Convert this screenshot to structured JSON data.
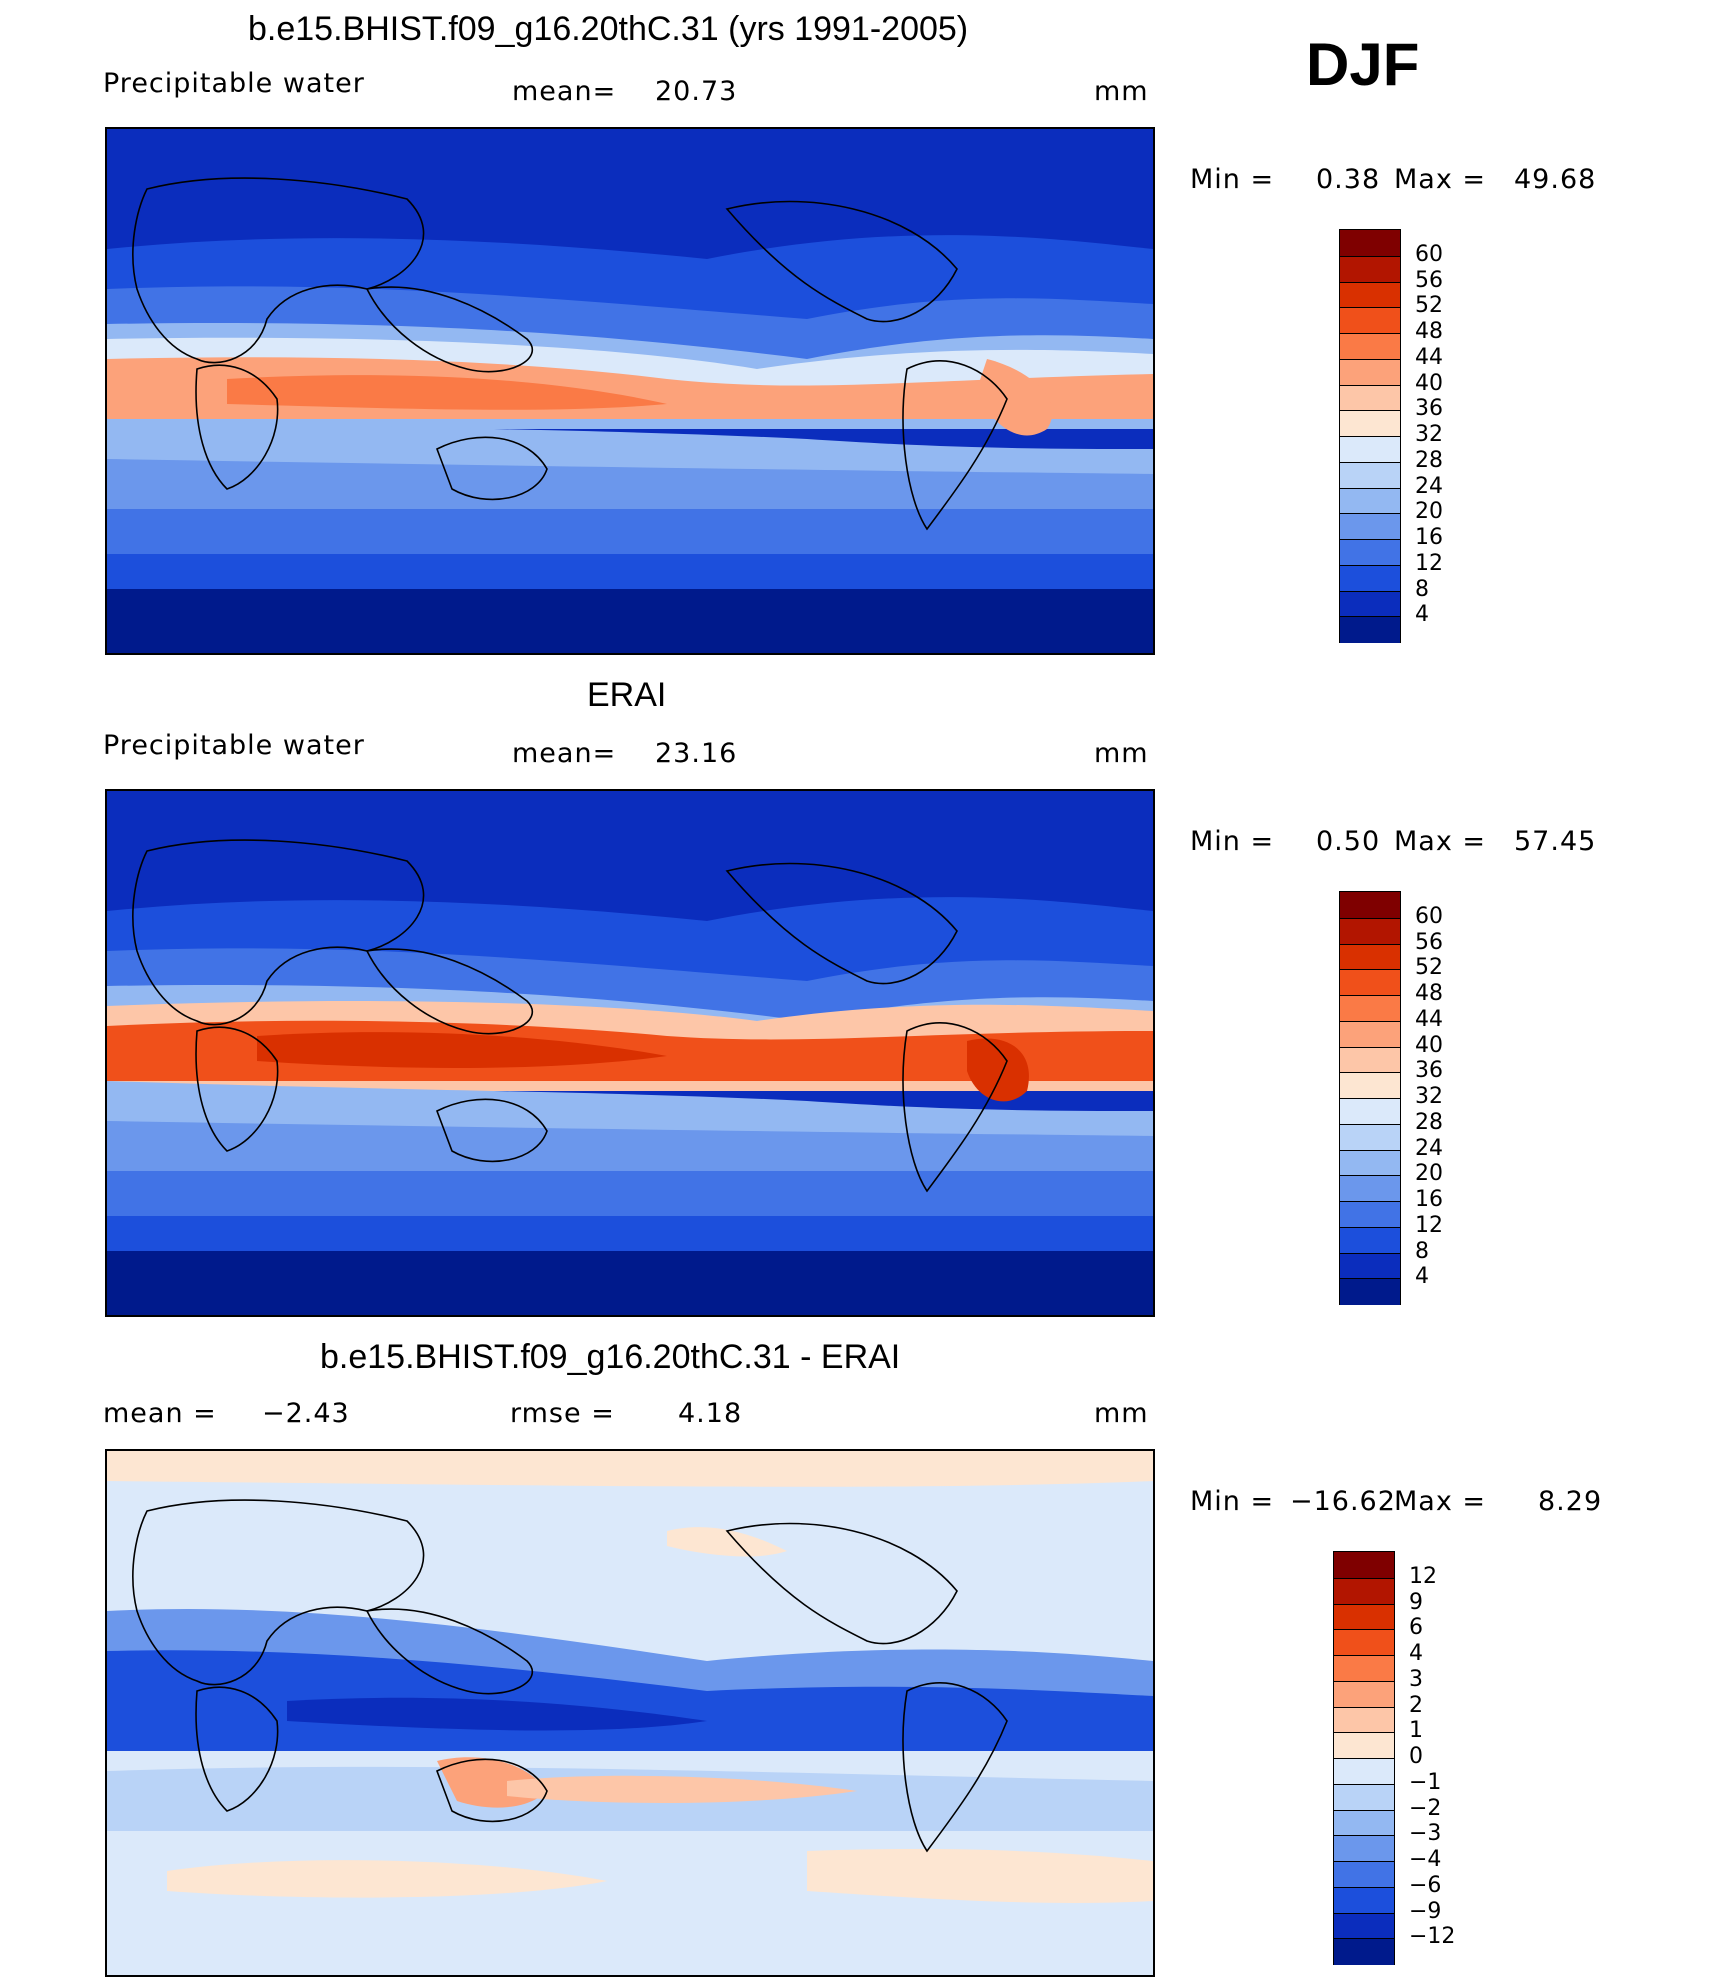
{
  "season": "DJF",
  "panels": [
    {
      "title": "b.e15.BHIST.f09_g16.20thC.31 (yrs 1991-2005)",
      "variable": "Precipitable  water",
      "mean_label": "mean=",
      "mean_value": "20.73",
      "units": "mm",
      "min_label": "Min  =",
      "min_value": "0.38",
      "max_label": "Max  =",
      "max_value": "49.68",
      "colorbar_labels": [
        "60",
        "56",
        "52",
        "48",
        "44",
        "40",
        "36",
        "32",
        "28",
        "24",
        "20",
        "16",
        "12",
        "8",
        "4"
      ]
    },
    {
      "title": "ERAI",
      "variable": "Precipitable  water",
      "mean_label": "mean=",
      "mean_value": "23.16",
      "units": "mm",
      "min_label": "Min  =",
      "min_value": "0.50",
      "max_label": "Max  =",
      "max_value": "57.45",
      "colorbar_labels": [
        "60",
        "56",
        "52",
        "48",
        "44",
        "40",
        "36",
        "32",
        "28",
        "24",
        "20",
        "16",
        "12",
        "8",
        "4"
      ]
    },
    {
      "title": "b.e15.BHIST.f09_g16.20thC.31 - ERAI",
      "mean_label": "mean  =",
      "mean_value": "−2.43",
      "rmse_label": "rmse  =",
      "rmse_value": "4.18",
      "units": "mm",
      "min_label": "Min  =",
      "min_value": "−16.62",
      "max_label": "Max  =",
      "max_value": "8.29",
      "colorbar_labels": [
        "12",
        "9",
        "6",
        "4",
        "3",
        "2",
        "1",
        "0",
        "−1",
        "−2",
        "−3",
        "−4",
        "−6",
        "−9",
        "−12"
      ]
    }
  ],
  "colors": {
    "abs_scale": [
      "#7f0000",
      "#b21500",
      "#d93000",
      "#f0501a",
      "#fa7a46",
      "#fca27a",
      "#fdc6a8",
      "#fde6d2",
      "#dbe9fa",
      "#b9d3f7",
      "#93b8f2",
      "#6b97ec",
      "#4173e6",
      "#1c4fdc",
      "#0b2dbd",
      "#001a8c"
    ],
    "diff_scale": [
      "#7f0000",
      "#b21500",
      "#d93000",
      "#f0501a",
      "#fa7a46",
      "#fca27a",
      "#fdc6a8",
      "#fde6d2",
      "#dbe9fa",
      "#b9d3f7",
      "#93b8f2",
      "#6b97ec",
      "#4173e6",
      "#1c4fdc",
      "#0b2dbd",
      "#001a8c"
    ]
  }
}
